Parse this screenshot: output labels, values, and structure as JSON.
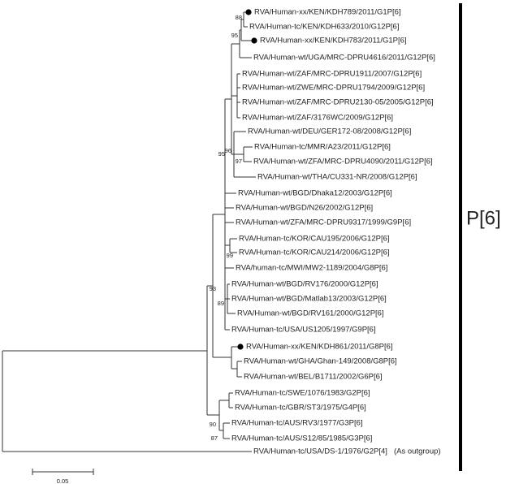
{
  "tree": {
    "leaves": [
      "RVA/Human-xx/KEN/KDH789/2011/G1P[6]",
      "RVA/Human-tc/KEN/KDH633/2010/G12P[6]",
      "RVA/Human-xx/KEN/KDH783/2011/G1P[6]",
      "RVA/Human-wt/UGA/MRC-DPRU4616/2011/G12P[6]",
      "RVA/Human-wt/ZAF/MRC-DPRU1911/2007/G12P[6]",
      "RVA/Human-wt/ZWE/MRC-DPRU1794/2009/G12P[6]",
      "RVA/Human-wt/ZAF/MRC-DPRU2130-05/2005/G12P[6]",
      "RVA/Human-wt/ZAF/3176WC/2009/G12P[6]",
      "RVA/Human-wt/DEU/GER172-08/2008/G12P[6]",
      "RVA/Human-tc/MMR/A23/2011/G12P[6]",
      "RVA/Human-wt/ZFA/MRC-DPRU4090/2011/G12P[6]",
      "RVA/Human-wt/THA/CU331-NR/2008/G12P[6]",
      "RVA/Human-wt/BGD/Dhaka12/2003/G12P[6]",
      "RVA/Human-wt/BGD/N26/2002/G12P[6]",
      "RVA/Human-wt/ZFA/MRC-DPRU9317/1999/G9P[6]",
      "RVA/Human-tc/KOR/CAU195/2006/G12P[6]",
      "RVA/Human-tc/KOR/CAU214/2006/G12P[6]",
      "RVA/human-tc/MWI/MW2-1189/2004/G8P[6]",
      "RVA/Human-wt/BGD/RV176/2000/G12P[6]",
      "RVA/Human-wt/BGD/Matlab13/2003/G12P[6]",
      "RVA/Human-wt/BGD/RV161/2000/G12P[6]",
      "RVA/Human-tc/USA/US1205/1997/G9P[6]",
      "RVA/Human-xx/KEN/KDH861/2011/G8P[6]",
      "RVA/Human-wt/GHA/Ghan-149/2008/G8P[6]",
      "RVA/Human-wt/BEL/B1711/2002/G6P[6]",
      "RVA/Human-tc/SWE/1076/1983/G2P[6]",
      "RVA/Human-tc/GBR/ST3/1975/G4P[6]",
      "RVA/Human-tc/AUS/RV3/1977/G3P[6]",
      "RVA/Human-tc/AUS/S12/85/1985/G3P[6]",
      "RVA/Human-tc/USA/DS-1/1976/G2P[4]"
    ],
    "bootstrap": [
      88,
      95,
      96,
      95,
      97,
      99,
      93,
      89,
      90,
      87
    ],
    "outgroup_note": "(As outgroup)",
    "group_label": "P[6]",
    "scale_label": "0.05"
  }
}
